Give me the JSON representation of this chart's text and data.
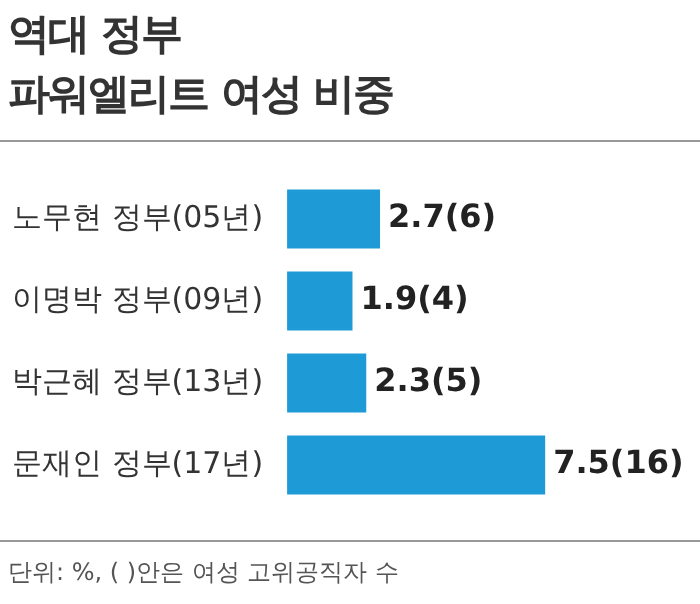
{
  "chart_data": {
    "type": "bar",
    "orientation": "horizontal",
    "title": "역대 정부\n파워엘리트 여성 비중",
    "categories": [
      "노무현 정부(05년)",
      "이명박 정부(09년)",
      "박근혜 정부(13년)",
      "문재인 정부(17년)"
    ],
    "values": [
      2.7,
      1.9,
      2.3,
      7.5
    ],
    "color": "#1e9ad6",
    "value_labels": [
      "2.7(6)",
      "1.9(4)",
      "2.3(5)",
      "7.5(16)"
    ],
    "annotations": [
      "단위: %, ( )안은 여성 고위공직자 수"
    ],
    "legend": false
  }
}
